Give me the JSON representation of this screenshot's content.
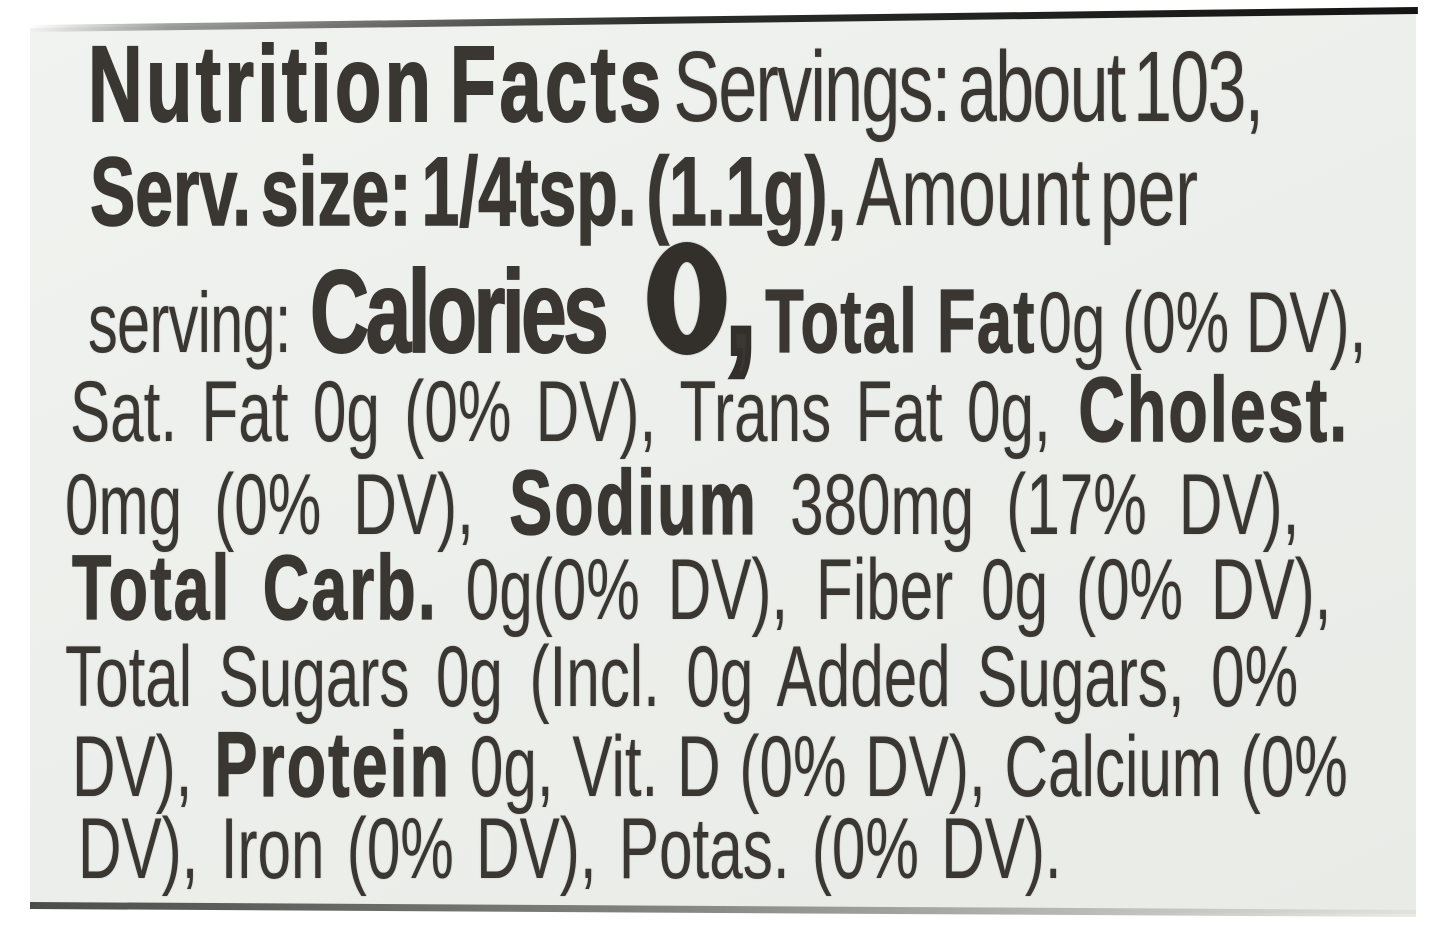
{
  "colors": {
    "background": "#ffffff",
    "label_bg": "#edefec",
    "text": "#3a3733",
    "top_border": "#1a1a1a",
    "bottom_border": "#4c4c4a"
  },
  "label": {
    "title": "Nutrition Facts",
    "servings": "Servings: about 103,",
    "serving_size_bold": "Serv. size: 1/4tsp. (1.1g),",
    "amount_per": "Amount per",
    "serving_word": "serving:",
    "calories_label": "Calories",
    "calories_value": "0",
    "calories_comma": ",",
    "total_fat_label": "Total Fat",
    "total_fat_value": "0g (0% DV),",
    "line4_reg": "Sat. Fat 0g (0% DV), Trans Fat 0g,",
    "line4_bold": "Cholest.",
    "line5_reg1": "0mg (0% DV),",
    "line5_bold": "Sodium",
    "line5_reg2": "380mg (17% DV),",
    "line6_bold": "Total Carb.",
    "line6_reg": "0g(0% DV), Fiber 0g (0% DV),",
    "line7_reg": "Total Sugars 0g (Incl. 0g Added Sugars, 0%",
    "line8_reg1": "DV),",
    "line8_bold": "Protein",
    "line8_reg2": "0g, Vit. D (0% DV), Calcium (0%",
    "line9_reg": "DV), Iron (0% DV), Potas. (0% DV)."
  }
}
